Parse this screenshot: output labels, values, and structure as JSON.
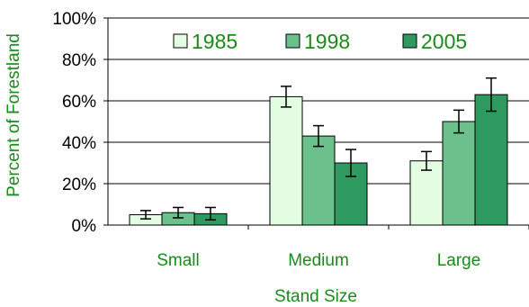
{
  "chart_data": {
    "type": "bar",
    "xlabel": "Stand Size",
    "ylabel": "Percent of Forestland",
    "ylim": [
      0,
      100
    ],
    "y_ticks": [
      "0%",
      "20%",
      "40%",
      "60%",
      "80%",
      "100%"
    ],
    "y_tick_values": [
      0,
      20,
      40,
      60,
      80,
      100
    ],
    "categories": [
      "Small",
      "Medium",
      "Large"
    ],
    "series": [
      {
        "name": "1985",
        "color": "#e3fde3",
        "values": [
          5,
          62,
          31
        ],
        "error": [
          2,
          5,
          4.5
        ]
      },
      {
        "name": "1998",
        "color": "#6cc08c",
        "values": [
          6,
          43,
          50
        ],
        "error": [
          2.5,
          5,
          5.5
        ]
      },
      {
        "name": "2005",
        "color": "#2f9a60",
        "values": [
          5.5,
          30,
          63
        ],
        "error": [
          3,
          6.5,
          8
        ]
      }
    ],
    "grid": "horizontal",
    "legend_position": "top"
  }
}
